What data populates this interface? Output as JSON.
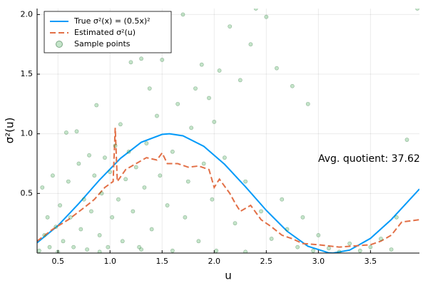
{
  "chart_data": {
    "type": "line",
    "xlabel": "u",
    "ylabel": "σ²(u)",
    "annotation": "Avg. quotient: 37.62",
    "grid": true,
    "legend": "top-left",
    "xlim": [
      0.3,
      3.97
    ],
    "ylim": [
      0,
      2.05
    ],
    "xticks": [
      0.5,
      {
        "value": 1,
        "label": "1.0"
      },
      1.5,
      {
        "value": 2,
        "label": "2.0"
      },
      2.5,
      {
        "value": 3,
        "label": "3.0"
      },
      3.5
    ],
    "yticks": [
      0.5,
      {
        "value": 1,
        "label": "1.0"
      },
      1.5,
      {
        "value": 2,
        "label": "2.0"
      }
    ],
    "series": [
      {
        "name": "True σ²(x) = (0.5x)²",
        "type": "line",
        "color": "#009af9",
        "x": [
          0.3,
          0.5,
          0.7,
          0.9,
          1.1,
          1.3,
          1.5,
          1.57,
          1.7,
          1.9,
          2.1,
          2.3,
          2.5,
          2.7,
          2.9,
          3.1,
          3.14,
          3.3,
          3.5,
          3.7,
          3.97
        ],
        "values": [
          0.087,
          0.23,
          0.415,
          0.614,
          0.794,
          0.929,
          0.995,
          1.0,
          0.983,
          0.895,
          0.744,
          0.556,
          0.358,
          0.183,
          0.057,
          0.002,
          0.0,
          0.025,
          0.123,
          0.281,
          0.537
        ]
      },
      {
        "name": "Estimated σ²(u)",
        "type": "line",
        "dash": true,
        "color": "#e26f46",
        "x": [
          0.3,
          0.45,
          0.6,
          0.75,
          0.85,
          0.95,
          1.03,
          1.05,
          1.07,
          1.15,
          1.25,
          1.35,
          1.45,
          1.5,
          1.55,
          1.65,
          1.75,
          1.85,
          1.95,
          2.0,
          2.05,
          2.15,
          2.2,
          2.25,
          2.35,
          2.45,
          2.55,
          2.65,
          2.75,
          2.85,
          3.0,
          3.2,
          3.5,
          3.6,
          3.7,
          3.8,
          3.97
        ],
        "values": [
          0.1,
          0.2,
          0.28,
          0.38,
          0.45,
          0.55,
          0.6,
          1.05,
          0.6,
          0.7,
          0.75,
          0.8,
          0.78,
          0.84,
          0.75,
          0.75,
          0.72,
          0.73,
          0.7,
          0.55,
          0.62,
          0.5,
          0.42,
          0.35,
          0.4,
          0.28,
          0.22,
          0.15,
          0.12,
          0.08,
          0.07,
          0.05,
          0.07,
          0.1,
          0.15,
          0.26,
          0.28
        ]
      },
      {
        "name": "Sample points",
        "type": "scatter",
        "color": "#3da44d",
        "x": [
          0.32,
          0.35,
          0.37,
          0.4,
          0.42,
          0.45,
          0.48,
          0.5,
          0.52,
          0.55,
          0.58,
          0.6,
          0.62,
          0.65,
          0.68,
          0.7,
          0.72,
          0.75,
          0.78,
          0.8,
          0.82,
          0.85,
          0.87,
          0.9,
          0.92,
          0.95,
          0.98,
          1.0,
          1.02,
          1.05,
          1.08,
          1.1,
          1.12,
          1.15,
          1.18,
          1.2,
          1.22,
          1.25,
          1.28,
          1.3,
          1.33,
          1.35,
          1.38,
          1.4,
          1.45,
          1.48,
          1.5,
          1.55,
          1.6,
          1.65,
          1.7,
          1.72,
          1.75,
          1.78,
          1.82,
          1.85,
          1.88,
          1.9,
          1.95,
          1.98,
          2.0,
          2.02,
          2.05,
          2.1,
          2.15,
          2.2,
          2.25,
          2.3,
          2.35,
          2.4,
          2.45,
          2.5,
          2.55,
          2.6,
          2.65,
          2.7,
          2.75,
          2.8,
          2.85,
          2.9,
          2.95,
          3.0,
          3.1,
          3.2,
          3.3,
          3.4,
          3.5,
          3.6,
          3.7,
          3.75,
          3.85,
          3.95,
          0.9,
          1.6,
          2.3,
          1.3
        ],
        "values": [
          0.02,
          0.55,
          0.15,
          0.3,
          0.05,
          0.65,
          0.22,
          0.01,
          0.4,
          0.1,
          1.01,
          0.6,
          0.3,
          0.05,
          1.02,
          0.75,
          0.2,
          0.45,
          0.03,
          0.82,
          0.35,
          0.65,
          1.24,
          0.15,
          0.5,
          0.8,
          0.05,
          0.68,
          0.3,
          0.9,
          0.45,
          1.08,
          0.1,
          0.62,
          0.85,
          1.6,
          0.35,
          0.72,
          0.05,
          1.63,
          0.55,
          0.92,
          1.38,
          0.2,
          1.15,
          0.65,
          1.62,
          0.4,
          0.85,
          1.25,
          2.0,
          0.3,
          0.6,
          1.05,
          1.38,
          0.1,
          1.58,
          0.75,
          1.3,
          0.45,
          1.1,
          0.02,
          1.53,
          0.8,
          1.9,
          0.25,
          1.45,
          0.6,
          1.75,
          2.05,
          0.35,
          1.98,
          0.12,
          1.55,
          0.45,
          0.2,
          1.4,
          0.05,
          0.3,
          1.25,
          0.02,
          0.15,
          0.04,
          0.01,
          0.08,
          0.02,
          0.05,
          0.12,
          0.03,
          0.3,
          0.95,
          2.05,
          0.01,
          0.02,
          0.01,
          0.03
        ]
      }
    ]
  }
}
